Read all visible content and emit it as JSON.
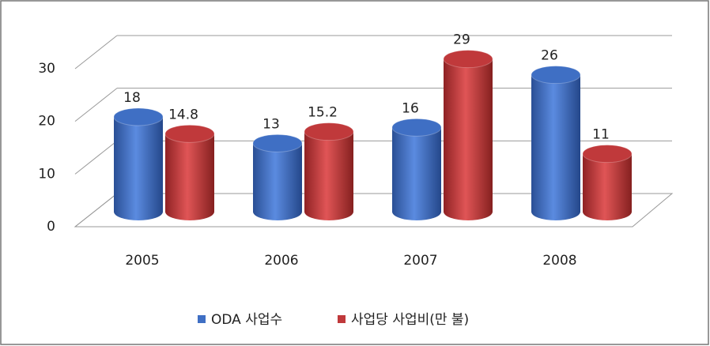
{
  "chart_data": {
    "type": "bar3d",
    "categories": [
      "2005",
      "2006",
      "2007",
      "2008"
    ],
    "series": [
      {
        "name": "ODA 사업수",
        "color": "#3f6fc4",
        "values": [
          18,
          13,
          16,
          26
        ]
      },
      {
        "name": "사업당 사업비(만 불)",
        "color": "#c0393b",
        "values": [
          14.8,
          15.2,
          29,
          11
        ]
      }
    ],
    "ylim": [
      0,
      30
    ],
    "yticks": [
      0,
      10,
      20,
      30
    ],
    "grid": true,
    "legend": "bottom"
  }
}
